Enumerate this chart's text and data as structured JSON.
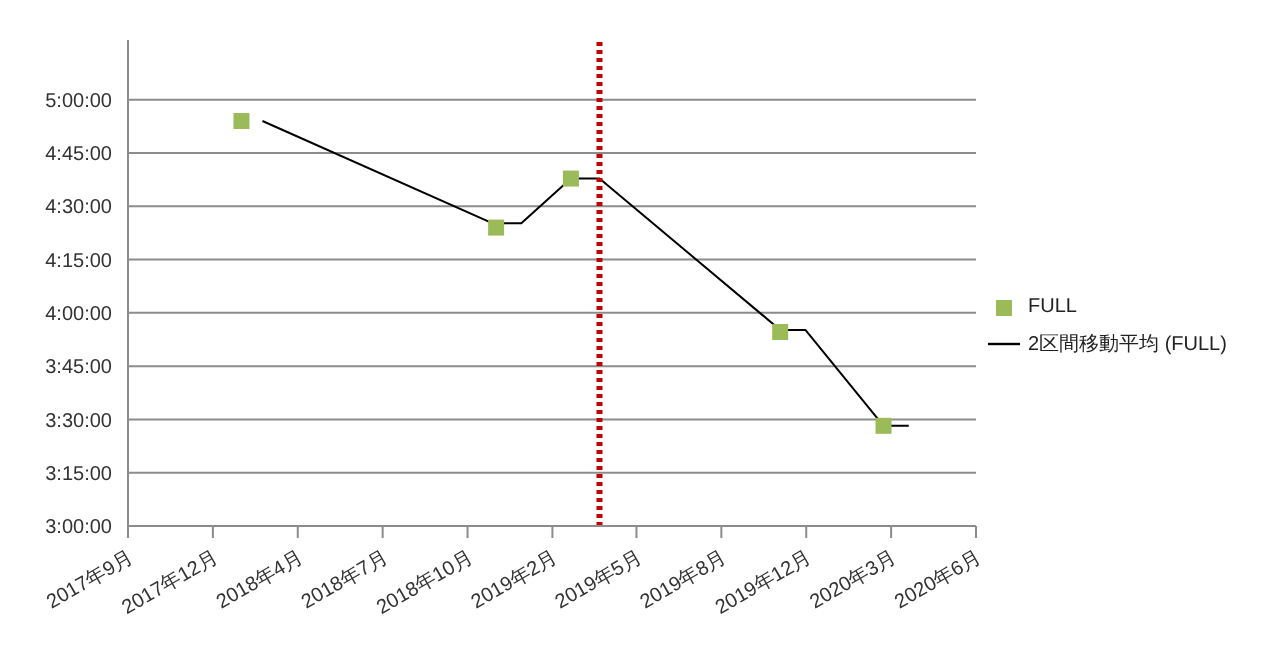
{
  "chart_data": {
    "type": "scatter",
    "xlim": [
      "2017-09-20",
      "2020-06-25"
    ],
    "xticks": [
      {
        "value": "2017-09-20",
        "label": "2017年9月"
      },
      {
        "value": "2017-12-30",
        "label": "2017年12月"
      },
      {
        "value": "2018-04-10",
        "label": "2018年4月"
      },
      {
        "value": "2018-07-20",
        "label": "2018年7月"
      },
      {
        "value": "2018-10-29",
        "label": "2018年10月"
      },
      {
        "value": "2019-02-07",
        "label": "2019年2月"
      },
      {
        "value": "2019-05-18",
        "label": "2019年5月"
      },
      {
        "value": "2019-08-27",
        "label": "2019年8月"
      },
      {
        "value": "2019-12-06",
        "label": "2019年12月"
      },
      {
        "value": "2020-03-16",
        "label": "2020年3月"
      },
      {
        "value": "2020-06-25",
        "label": "2020年6月"
      }
    ],
    "ylim": [
      3,
      5.28
    ],
    "yticks": [
      {
        "value": 3,
        "label": "3:00:00"
      },
      {
        "value": 3.25,
        "label": "3:15:00"
      },
      {
        "value": 3.5,
        "label": "3:30:00"
      },
      {
        "value": 3.75,
        "label": "3:45:00"
      },
      {
        "value": 4,
        "label": "4:00:00"
      },
      {
        "value": 4.25,
        "label": "4:15:00"
      },
      {
        "value": 4.5,
        "label": "4:30:00"
      },
      {
        "value": 4.75,
        "label": "4:45:00"
      },
      {
        "value": 5,
        "label": "5:00:00"
      }
    ],
    "grid": "y",
    "legend": "right",
    "series": [
      {
        "name": "FULL",
        "marker": "square",
        "color": "#9bbb59",
        "x": [
          "2018-02-02",
          "2018-12-02",
          "2019-03-01",
          "2019-11-05",
          "2020-03-07"
        ],
        "values": [
          4.9,
          4.4,
          4.63,
          3.91,
          3.47
        ]
      },
      {
        "name": "2区間移動平均 (FULL)",
        "type": "line",
        "marker": "none",
        "color": "#000000",
        "x": [
          "2018-02-27",
          "2018-11-28",
          "2019-01-01",
          "2019-03-01",
          "2019-04-04",
          "2019-11-05",
          "2019-12-05",
          "2020-03-07",
          "2020-04-06"
        ],
        "values": [
          4.9,
          4.42,
          4.42,
          4.63,
          4.63,
          3.92,
          3.92,
          3.47,
          3.47
        ]
      }
    ],
    "ref_lines": [
      {
        "axis": "x",
        "value": "2019-04-04",
        "color": "#c00000",
        "line_style": "dotted"
      }
    ]
  }
}
